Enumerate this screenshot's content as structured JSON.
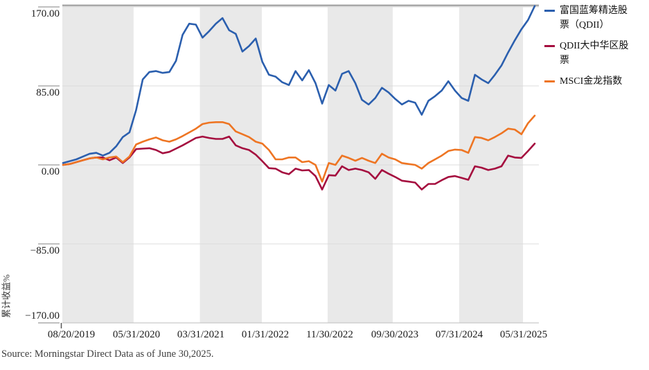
{
  "source_note": "Source: Morningstar Direct Data as of June 30,2025.",
  "chart_data": {
    "type": "line",
    "title": "",
    "ylabel": "累计收益%",
    "ylim": [
      -170,
      170
    ],
    "grid": "horizontal gridlines at each y tick, alternating vertical gray period bands",
    "legend_position": "top-right outside plot",
    "ytick_labels": [
      "170.00",
      "85.00",
      "0.00",
      "−85.00",
      "−170.00"
    ],
    "ytick_values": [
      170,
      85,
      0,
      -85,
      -170
    ],
    "xtick_labels": [
      "08/20/2019",
      "05/31/2020",
      "03/31/2021",
      "01/31/2022",
      "11/30/2022",
      "09/30/2023",
      "07/31/2024",
      "05/31/2025"
    ],
    "x_start": "08/20/2019",
    "x_end": "06/30/2025",
    "frequency": "monthly",
    "colors": {
      "fund_blue": "#2b5fae",
      "category_red": "#a50e3f",
      "index_orange": "#ee7523"
    },
    "series": [
      {
        "name": "富国蓝筹精选股票（QDII）",
        "color": "#2b5fae",
        "values": [
          2,
          4,
          6,
          9,
          12,
          13,
          10,
          13,
          20,
          30,
          35,
          59,
          92,
          100,
          101,
          99,
          100,
          112,
          140,
          152,
          151,
          137,
          144,
          152,
          158,
          145,
          141,
          122,
          128,
          136,
          111,
          97,
          95,
          89,
          86,
          101,
          91,
          102,
          88,
          66,
          86,
          80,
          98,
          101,
          88,
          70,
          65,
          72,
          83,
          78,
          71,
          65,
          69,
          67,
          54,
          69,
          74,
          80,
          90,
          80,
          72,
          69,
          97,
          92,
          88,
          97,
          107,
          121,
          134,
          146,
          156,
          171
        ]
      },
      {
        "name": "QDII大中华区股票",
        "color": "#a50e3f",
        "values": [
          0,
          1,
          3,
          5,
          7,
          8,
          8,
          5,
          8,
          2,
          8,
          17,
          17.5,
          18,
          16,
          12.5,
          14,
          17.5,
          21,
          25,
          29,
          30.5,
          29,
          28,
          28,
          30.5,
          21,
          18,
          16,
          11,
          4,
          -3.5,
          -4,
          -8,
          -10,
          -4,
          -6,
          -5.5,
          -12,
          -26.5,
          -11,
          -11.5,
          -1.5,
          -5.5,
          -4,
          -5.5,
          -8,
          -15,
          -5.5,
          -9.5,
          -13,
          -17,
          -18,
          -19,
          -26.5,
          -20.5,
          -20.5,
          -16.5,
          -13,
          -12,
          -14,
          -16,
          -1.5,
          -3,
          -5.5,
          -4,
          -1.5,
          10,
          8,
          7.5,
          15,
          23
        ]
      },
      {
        "name": "MSCI金龙指数",
        "color": "#ee7523",
        "values": [
          0,
          1,
          3,
          5,
          7,
          8,
          6,
          8,
          9,
          3,
          9,
          22,
          25,
          27.5,
          29.5,
          26.5,
          25,
          27.5,
          31,
          35,
          39,
          44,
          45.5,
          46,
          46,
          44,
          36,
          33,
          30,
          25,
          23,
          16,
          6,
          6,
          8,
          8,
          3,
          4,
          0,
          -18,
          2,
          0,
          10,
          7.5,
          4.5,
          7.5,
          4.5,
          2,
          12,
          8,
          6,
          2,
          1,
          0,
          -4,
          2,
          6,
          10,
          15,
          16.5,
          16,
          13,
          30,
          29,
          26.5,
          30,
          34,
          39,
          38,
          33,
          45,
          53
        ]
      }
    ]
  }
}
